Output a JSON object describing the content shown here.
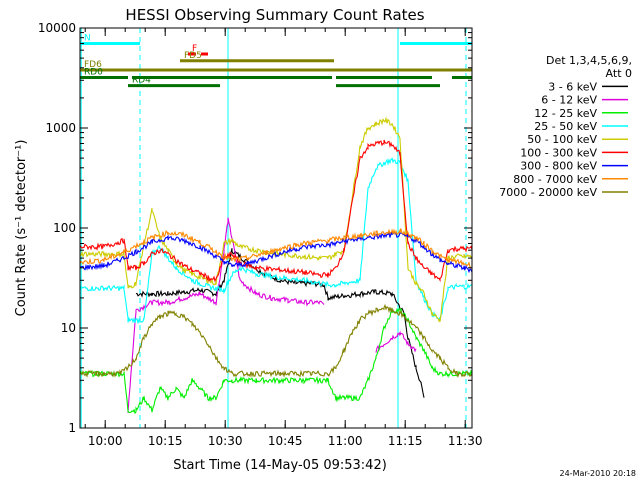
{
  "chart_data": {
    "type": "line",
    "title": "HESSI Observing Summary Count Rates",
    "xlabel": "Start Time (14-May-05 09:53:42)",
    "ylabel": "Count Rate (s⁻¹ detector⁻¹)",
    "x_unit": "minutes after 09:53:42",
    "xlim": [
      0,
      98
    ],
    "ylim": [
      1,
      10000
    ],
    "y_scale": "log",
    "x_ticks": [
      {
        "x": 6.3,
        "label": "10:00"
      },
      {
        "x": 21.3,
        "label": "10:15"
      },
      {
        "x": 36.3,
        "label": "10:30"
      },
      {
        "x": 51.3,
        "label": "10:45"
      },
      {
        "x": 66.3,
        "label": "11:00"
      },
      {
        "x": 81.3,
        "label": "11:15"
      },
      {
        "x": 96.3,
        "label": "11:30"
      }
    ],
    "y_ticks": [
      {
        "y": 1,
        "label": "1"
      },
      {
        "y": 10,
        "label": "10"
      },
      {
        "y": 100,
        "label": "100"
      },
      {
        "y": 1000,
        "label": "1000"
      },
      {
        "y": 10000,
        "label": "10000"
      }
    ],
    "legend": {
      "placement": "right",
      "header": [
        "Det 1,3,4,5,6,9,",
        "Att 0"
      ]
    },
    "series": [
      {
        "name": "3 - 6 keV",
        "color": "#000000",
        "x": [
          0,
          6,
          6.5,
          11,
          14,
          18,
          22,
          26,
          30,
          34,
          36,
          38,
          42,
          46,
          50,
          54,
          58,
          61,
          62,
          66,
          70,
          74,
          78,
          81,
          82,
          84,
          85,
          86,
          87,
          88,
          90,
          93,
          95,
          98
        ],
        "y": [
          null,
          null,
          null,
          null,
          22,
          22,
          22,
          23,
          24,
          22,
          30,
          60,
          45,
          35,
          30,
          28,
          28,
          27,
          20,
          21,
          22,
          23,
          22,
          14,
          8,
          4,
          3,
          2,
          null,
          null,
          null,
          null,
          null,
          null
        ]
      },
      {
        "name": "6 - 12 keV",
        "color": "#dd00dd",
        "x": [
          0,
          6,
          12,
          14,
          18,
          22,
          26,
          30,
          32,
          34,
          36,
          37,
          38,
          40,
          44,
          48,
          52,
          56,
          60,
          61,
          62,
          64,
          66,
          70,
          74,
          78,
          80,
          82,
          84,
          86,
          88,
          98
        ],
        "y": [
          null,
          null,
          1.5,
          15,
          18,
          18,
          20,
          22,
          20,
          18,
          60,
          120,
          80,
          30,
          22,
          20,
          19,
          18,
          18,
          17,
          null,
          null,
          null,
          null,
          6,
          8,
          9,
          7,
          6,
          null,
          null,
          null
        ]
      },
      {
        "name": "12 - 25 keV",
        "color": "#00ee00",
        "x": [
          0,
          4,
          6,
          11,
          12,
          14,
          16,
          18,
          20,
          22,
          24,
          26,
          28,
          30,
          32,
          34,
          36,
          38,
          40,
          44,
          50,
          56,
          60,
          62,
          64,
          66,
          70,
          72,
          74,
          76,
          78,
          80,
          82,
          84,
          86,
          88,
          90,
          92,
          94,
          96,
          98
        ],
        "y": [
          3.5,
          3.5,
          3.5,
          3.5,
          1.5,
          1.5,
          2,
          1.5,
          2.5,
          2,
          2.5,
          2,
          3,
          2.5,
          2,
          2,
          3,
          3,
          3,
          3,
          3,
          3,
          3,
          3,
          2,
          2,
          2,
          3,
          5,
          10,
          15,
          15,
          12,
          8,
          6,
          4,
          3.5,
          3.5,
          3.5,
          3.5,
          3.5
        ]
      },
      {
        "name": "25 - 50 keV",
        "color": "#00ffff",
        "x": [
          0,
          4,
          6,
          11,
          12,
          16,
          18,
          20,
          22,
          24,
          26,
          28,
          30,
          32,
          34,
          36,
          38,
          40,
          44,
          50,
          56,
          60,
          62,
          64,
          66,
          70,
          72,
          74,
          76,
          78,
          80,
          82,
          84,
          86,
          88,
          90,
          92,
          94,
          96,
          98
        ],
        "y": [
          25,
          25,
          25,
          25,
          12,
          12,
          55,
          65,
          50,
          40,
          35,
          30,
          28,
          26,
          25,
          24,
          34,
          40,
          35,
          32,
          30,
          28,
          27,
          27,
          28,
          30,
          250,
          400,
          450,
          480,
          450,
          300,
          30,
          20,
          14,
          12,
          25,
          26,
          26,
          26
        ]
      },
      {
        "name": "50 - 100 keV",
        "color": "#cccc00",
        "x": [
          0,
          4,
          6,
          11,
          12,
          14,
          16,
          18,
          20,
          22,
          24,
          26,
          28,
          30,
          32,
          34,
          36,
          38,
          40,
          44,
          50,
          56,
          60,
          62,
          64,
          66,
          70,
          72,
          74,
          76,
          78,
          80,
          82,
          84,
          86,
          88,
          90,
          92,
          94,
          96,
          98
        ],
        "y": [
          55,
          55,
          55,
          55,
          25,
          28,
          70,
          150,
          80,
          60,
          45,
          38,
          35,
          32,
          30,
          28,
          70,
          75,
          65,
          60,
          55,
          52,
          50,
          50,
          55,
          60,
          650,
          1000,
          1100,
          1200,
          1100,
          800,
          40,
          28,
          22,
          14,
          12,
          50,
          52,
          52,
          52
        ]
      },
      {
        "name": "100 - 300 keV",
        "color": "#ff0000",
        "x": [
          0,
          4,
          6,
          11,
          12,
          14,
          16,
          18,
          20,
          22,
          24,
          26,
          28,
          30,
          32,
          34,
          36,
          38,
          40,
          44,
          50,
          56,
          60,
          62,
          64,
          66,
          70,
          72,
          74,
          76,
          78,
          80,
          82,
          84,
          86,
          88,
          90,
          92,
          94,
          96,
          98
        ],
        "y": [
          65,
          65,
          65,
          75,
          40,
          40,
          45,
          55,
          60,
          55,
          48,
          42,
          38,
          35,
          32,
          30,
          50,
          55,
          45,
          40,
          38,
          36,
          34,
          34,
          40,
          60,
          500,
          650,
          700,
          720,
          680,
          550,
          70,
          50,
          40,
          35,
          30,
          60,
          62,
          62,
          62
        ]
      },
      {
        "name": "300 - 800 keV",
        "color": "#0000ff",
        "x": [
          0,
          6,
          10,
          14,
          18,
          22,
          26,
          30,
          34,
          36,
          38,
          42,
          46,
          50,
          54,
          58,
          62,
          64,
          66,
          70,
          74,
          78,
          80,
          82,
          84,
          86,
          88,
          90,
          92,
          94,
          96,
          98
        ],
        "y": [
          40,
          42,
          48,
          58,
          72,
          80,
          75,
          65,
          52,
          46,
          42,
          44,
          50,
          56,
          62,
          66,
          68,
          70,
          74,
          78,
          82,
          85,
          85,
          82,
          75,
          65,
          55,
          48,
          44,
          42,
          40,
          38
        ]
      },
      {
        "name": "800 - 7000 keV",
        "color": "#ff8800",
        "x": [
          0,
          6,
          10,
          14,
          18,
          22,
          26,
          30,
          34,
          36,
          38,
          42,
          46,
          50,
          54,
          58,
          62,
          64,
          66,
          70,
          74,
          78,
          80,
          82,
          84,
          86,
          88,
          90,
          92,
          94,
          96,
          98
        ],
        "y": [
          45,
          48,
          55,
          66,
          80,
          90,
          85,
          72,
          58,
          52,
          48,
          50,
          56,
          62,
          68,
          72,
          75,
          78,
          80,
          84,
          88,
          92,
          92,
          88,
          80,
          70,
          60,
          52,
          48,
          46,
          44,
          42
        ]
      },
      {
        "name": "7000 - 20000 keV",
        "color": "#808000",
        "x": [
          0,
          6,
          10,
          12,
          14,
          16,
          18,
          20,
          22,
          24,
          26,
          28,
          30,
          32,
          34,
          36,
          38,
          40,
          50,
          58,
          60,
          62,
          64,
          66,
          68,
          70,
          72,
          74,
          76,
          78,
          80,
          82,
          84,
          86,
          88,
          90,
          92,
          94,
          96,
          98
        ],
        "y": [
          3.5,
          3.5,
          3.5,
          4,
          5,
          8,
          11,
          13,
          14,
          14,
          13,
          11,
          9,
          7,
          5,
          4,
          3.5,
          3.5,
          3.5,
          3.5,
          3.5,
          3.5,
          4,
          6,
          9,
          12,
          14,
          15,
          16,
          15,
          14,
          12,
          10,
          8,
          6,
          5,
          4,
          3.5,
          3.5,
          3.5
        ]
      }
    ],
    "flag_bars": [
      {
        "label": "N",
        "color": "#00ffff",
        "segments": [
          [
            0,
            15
          ],
          [
            80,
            98
          ]
        ],
        "level": 7000
      },
      {
        "label": "F",
        "color": "#ff0000",
        "segments": [
          [
            27,
            32
          ]
        ],
        "level": 5500,
        "dashed": true
      },
      {
        "label": "FD5",
        "color": "#808000",
        "segments": [
          [
            25,
            63.5
          ]
        ],
        "level": 4700
      },
      {
        "label": "FD6",
        "color": "#808000",
        "segments": [
          [
            0,
            98
          ]
        ],
        "level": 3800
      },
      {
        "label": "RD0",
        "color": "#007000",
        "segments": [
          [
            0,
            12
          ],
          [
            13,
            63
          ],
          [
            64,
            88
          ],
          [
            93,
            98
          ]
        ],
        "level": 3200
      },
      {
        "label": "RD4",
        "color": "#007000",
        "segments": [
          [
            12,
            35
          ],
          [
            64,
            90
          ]
        ],
        "level": 2650
      }
    ],
    "vlines": [
      {
        "x": 0.3,
        "color": "#00ffff",
        "style": "solid"
      },
      {
        "x": 15,
        "color": "#00ffff",
        "style": "dashed"
      },
      {
        "x": 37,
        "color": "#00ffff",
        "style": "solid"
      },
      {
        "x": 79.5,
        "color": "#00ffff",
        "style": "solid"
      },
      {
        "x": 96.5,
        "color": "#00ffff",
        "style": "dashed"
      }
    ]
  },
  "footer": {
    "date": "24-Mar-2010 20:18"
  }
}
